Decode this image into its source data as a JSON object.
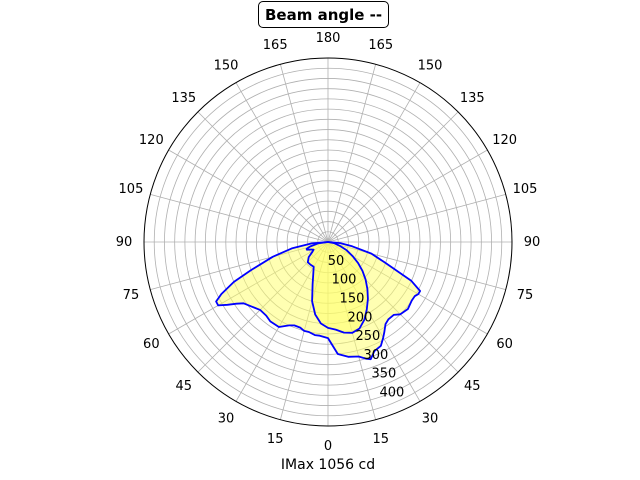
{
  "chart_data": {
    "type": "polar-line",
    "title": "Beam angle --",
    "xlabel": "IMax 1056 cd",
    "angle_tick_labels_left": [
      "180",
      "165",
      "150",
      "135",
      "120",
      "105",
      "90",
      "75",
      "60",
      "45",
      "30",
      "15",
      "0"
    ],
    "angle_tick_labels_right": [
      "180",
      "165",
      "150",
      "135",
      "120",
      "105",
      "90",
      "75",
      "60",
      "45",
      "30",
      "15",
      "0"
    ],
    "radial_tick_labels": [
      "50",
      "100",
      "150",
      "200",
      "250",
      "300",
      "350",
      "400"
    ],
    "radial_max": 450,
    "grid": true,
    "line_color": "#0000ff",
    "fill_color": "#ffff66",
    "series": [
      {
        "points": [
          [
            -90,
            0
          ],
          [
            -85,
            40
          ],
          [
            -80,
            90
          ],
          [
            -75,
            140
          ],
          [
            -70,
            200
          ],
          [
            -67,
            250
          ],
          [
            -64,
            290
          ],
          [
            -62,
            310
          ],
          [
            -60,
            310
          ],
          [
            -58,
            290
          ],
          [
            -56,
            270
          ],
          [
            -54,
            255
          ],
          [
            -50,
            245
          ],
          [
            -45,
            235
          ],
          [
            -40,
            235
          ],
          [
            -36,
            240
          ],
          [
            -30,
            240
          ],
          [
            -25,
            225
          ],
          [
            -22,
            220
          ],
          [
            -18,
            220
          ],
          [
            -15,
            225
          ],
          [
            -12,
            225
          ],
          [
            -8,
            230
          ],
          [
            -5,
            230
          ],
          [
            0,
            235
          ],
          [
            5,
            275
          ],
          [
            10,
            285
          ],
          [
            15,
            290
          ],
          [
            18,
            300
          ],
          [
            20,
            305
          ],
          [
            23,
            290
          ],
          [
            27,
            285
          ],
          [
            30,
            270
          ],
          [
            32,
            260
          ],
          [
            35,
            245
          ],
          [
            38,
            240
          ],
          [
            42,
            240
          ],
          [
            45,
            250
          ],
          [
            50,
            255
          ],
          [
            55,
            250
          ],
          [
            58,
            250
          ],
          [
            60,
            255
          ],
          [
            62,
            255
          ],
          [
            65,
            225
          ],
          [
            70,
            150
          ],
          [
            75,
            110
          ],
          [
            80,
            60
          ],
          [
            85,
            30
          ],
          [
            90,
            0
          ]
        ]
      },
      {
        "points": [
          [
            -90,
            0
          ],
          [
            -82,
            25
          ],
          [
            -76,
            45
          ],
          [
            -72,
            55
          ],
          [
            -70,
            55
          ],
          [
            -66,
            45
          ],
          [
            -62,
            40
          ],
          [
            -58,
            45
          ],
          [
            -52,
            60
          ],
          [
            -45,
            70
          ],
          [
            -38,
            70
          ],
          [
            -30,
            70
          ],
          [
            -25,
            85
          ],
          [
            -20,
            110
          ],
          [
            -15,
            150
          ],
          [
            -10,
            180
          ],
          [
            -5,
            200
          ],
          [
            0,
            210
          ],
          [
            5,
            215
          ],
          [
            10,
            225
          ],
          [
            15,
            230
          ],
          [
            20,
            225
          ],
          [
            25,
            210
          ],
          [
            30,
            190
          ],
          [
            35,
            170
          ],
          [
            40,
            150
          ],
          [
            45,
            130
          ],
          [
            50,
            110
          ],
          [
            55,
            90
          ],
          [
            60,
            70
          ],
          [
            66,
            50
          ],
          [
            72,
            30
          ],
          [
            80,
            15
          ],
          [
            90,
            0
          ]
        ]
      }
    ]
  }
}
